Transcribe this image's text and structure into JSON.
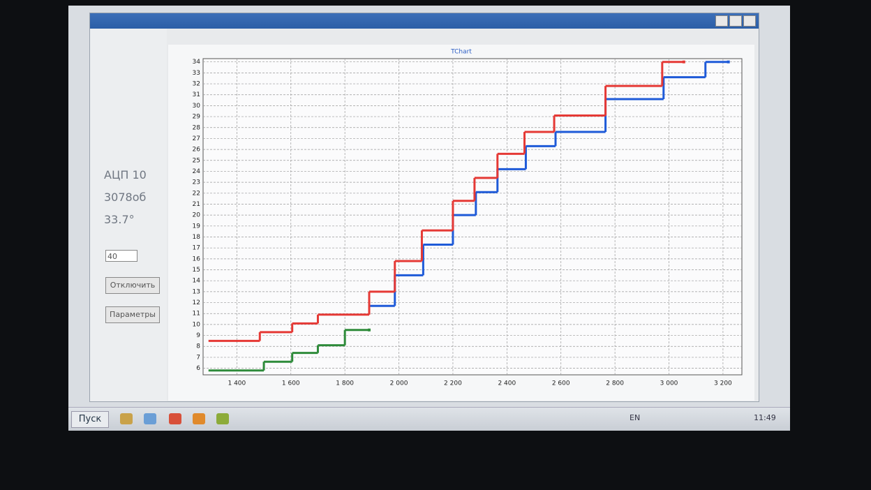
{
  "window": {
    "labels": {
      "adc": "АЦП 10",
      "rpm": "3078об",
      "temp": "33.7°"
    },
    "combo": "40",
    "buttons": [
      "Отключить",
      "Параметры"
    ]
  },
  "taskbar": {
    "start": "Пуск",
    "language": "EN",
    "clock": "11:49"
  },
  "chart_data": {
    "type": "line",
    "step": "post",
    "title": "TChart",
    "grid": true,
    "xlim": [
      1275,
      3270
    ],
    "ylim": [
      5.4,
      34.3
    ],
    "xticks": [
      {
        "value": 1400,
        "label": "1 400"
      },
      {
        "value": 1600,
        "label": "1 600"
      },
      {
        "value": 1800,
        "label": "1 800"
      },
      {
        "value": 2000,
        "label": "2 000"
      },
      {
        "value": 2200,
        "label": "2 200"
      },
      {
        "value": 2400,
        "label": "2 400"
      },
      {
        "value": 2600,
        "label": "2 600"
      },
      {
        "value": 2800,
        "label": "2 800"
      },
      {
        "value": 3000,
        "label": "3 000"
      },
      {
        "value": 3200,
        "label": "3 200"
      }
    ],
    "yticks": [
      6,
      7,
      8,
      9,
      10,
      11,
      12,
      13,
      14,
      15,
      16,
      17,
      18,
      19,
      20,
      21,
      22,
      23,
      24,
      25,
      26,
      27,
      28,
      29,
      30,
      31,
      32,
      33,
      34
    ],
    "series": [
      {
        "color": "#2e8b3a",
        "x": [
          1295,
          1500,
          1605,
          1700,
          1800,
          1890
        ],
        "values": [
          5.8,
          6.6,
          7.4,
          8.1,
          9.5,
          9.5
        ]
      },
      {
        "color": "#1e5ad8",
        "x": [
          1890,
          1985,
          2090,
          2200,
          2285,
          2365,
          2470,
          2580,
          2765,
          2980,
          3135,
          3220
        ],
        "values": [
          11.7,
          14.5,
          17.3,
          20.0,
          22.1,
          24.2,
          26.3,
          27.6,
          30.6,
          32.6,
          34.0,
          34.0
        ]
      },
      {
        "color": "#e53935",
        "x": [
          1295,
          1485,
          1605,
          1700,
          1890,
          1985,
          2085,
          2200,
          2280,
          2365,
          2465,
          2575,
          2765,
          2975,
          3055
        ],
        "values": [
          8.5,
          9.3,
          10.1,
          10.9,
          13.0,
          15.8,
          18.6,
          21.3,
          23.4,
          25.6,
          27.6,
          29.1,
          31.8,
          34.0,
          34.0
        ]
      }
    ]
  }
}
